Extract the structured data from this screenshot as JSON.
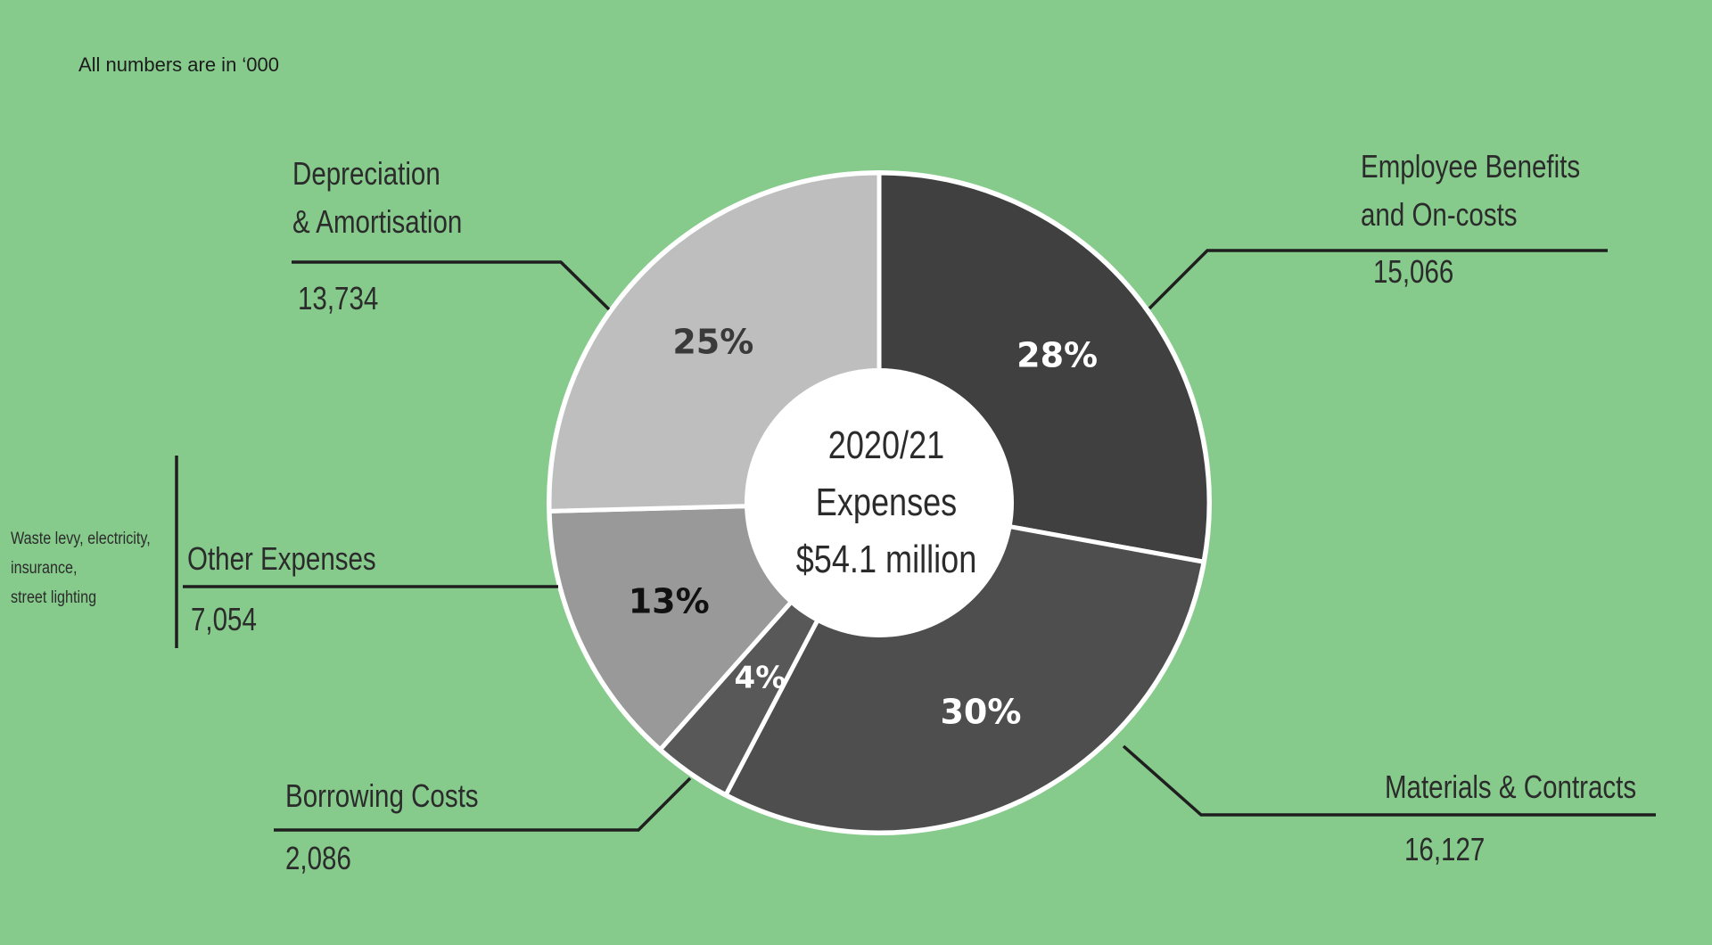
{
  "note": "All numbers are in ‘000",
  "center": {
    "line1": "2020/21",
    "line2": "Expenses",
    "line3": "$54.1 million"
  },
  "other_note": {
    "line1": "Waste levy, electricity,",
    "line2": "insurance,",
    "line3": "street lighting"
  },
  "colors": {
    "background": "#86cb8c",
    "employee": "#404040",
    "materials": "#4e4e4e",
    "borrowing": "#585858",
    "other": "#999999",
    "depreciation": "#bebebe"
  },
  "chart_data": {
    "type": "pie",
    "style": "donut",
    "slices": [
      {
        "label_line1": "Employee Benefits",
        "label_line2": "and On-costs",
        "value": 15066,
        "value_text": "15,066",
        "pct": "28%",
        "color": "#404040",
        "pct_color": "#ffffff"
      },
      {
        "label_line1": "Materials & Contracts",
        "label_line2": "",
        "value": 16127,
        "value_text": "16,127",
        "pct": "30%",
        "color": "#4e4e4e",
        "pct_color": "#ffffff"
      },
      {
        "label_line1": "Borrowing Costs",
        "label_line2": "",
        "value": 2086,
        "value_text": "2,086",
        "pct": "4%",
        "color": "#585858",
        "pct_color": "#ffffff"
      },
      {
        "label_line1": "Other Expenses",
        "label_line2": "",
        "value": 7054,
        "value_text": "7,054",
        "pct": "13%",
        "color": "#999999",
        "pct_color": "#111111"
      },
      {
        "label_line1": "Depreciation",
        "label_line2": "& Amortisation",
        "value": 13734,
        "value_text": "13,734",
        "pct": "25%",
        "color": "#bebebe",
        "pct_color": "#3a3a3a"
      }
    ]
  }
}
